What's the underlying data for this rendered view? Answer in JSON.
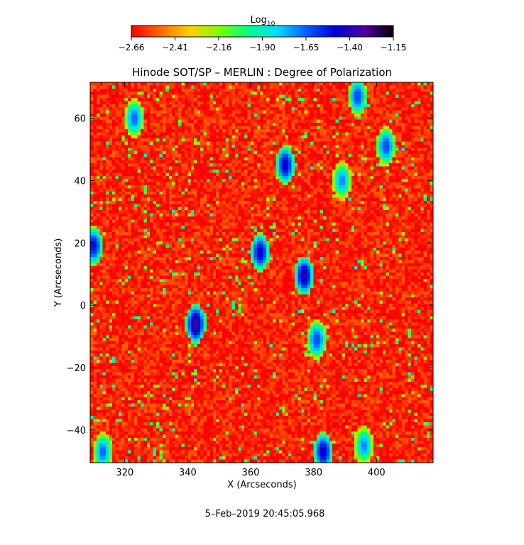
{
  "chart_data": {
    "type": "heatmap",
    "title": "Hinode SOT/SP – MERLIN : Degree of Polarization",
    "xlabel": "X (Arcseconds)",
    "ylabel": "Y (Arcseconds)",
    "xlim": [
      309.0,
      418.0
    ],
    "ylim": [
      -50.5,
      71.5
    ],
    "x_ticks": [
      320,
      340,
      360,
      380,
      400
    ],
    "y_ticks": [
      -40,
      -20,
      0,
      20,
      40,
      60
    ],
    "colorbar": {
      "label": "Log",
      "label_subscript": "10",
      "range": [
        -2.66,
        -1.15
      ],
      "ticks": [
        "−2.66",
        "−2.41",
        "−2.16",
        "−1.90",
        "−1.65",
        "−1.40",
        "−1.15"
      ],
      "colors": [
        "#ff0000",
        "#ff6a00",
        "#ffd000",
        "#80ff00",
        "#00ff80",
        "#00e0ff",
        "#0060ff",
        "#0000d0",
        "#5000a0",
        "#000000"
      ]
    },
    "map_summary": {
      "background_level": -2.6,
      "grid_rows": 122,
      "grid_cols": 109,
      "strong_features": [
        {
          "x": 342.5,
          "y": -6,
          "value": -1.35
        },
        {
          "x": 377,
          "y": 9.5,
          "value": -1.4
        },
        {
          "x": 371,
          "y": 45,
          "value": -1.45
        },
        {
          "x": 363,
          "y": 17,
          "value": -1.45
        },
        {
          "x": 310,
          "y": 19,
          "value": -1.5
        },
        {
          "x": 383,
          "y": -47,
          "value": -1.45
        },
        {
          "x": 381,
          "y": -11,
          "value": -1.6
        },
        {
          "x": 394,
          "y": 67,
          "value": -1.6
        },
        {
          "x": 403,
          "y": 51,
          "value": -1.6
        },
        {
          "x": 323,
          "y": 60,
          "value": -1.65
        },
        {
          "x": 313,
          "y": -47,
          "value": -1.65
        },
        {
          "x": 389,
          "y": 40,
          "value": -1.7
        },
        {
          "x": 396,
          "y": -45,
          "value": -1.7
        }
      ]
    }
  },
  "footer": {
    "timestamp": "5–Feb–2019 20:45:05.968"
  }
}
